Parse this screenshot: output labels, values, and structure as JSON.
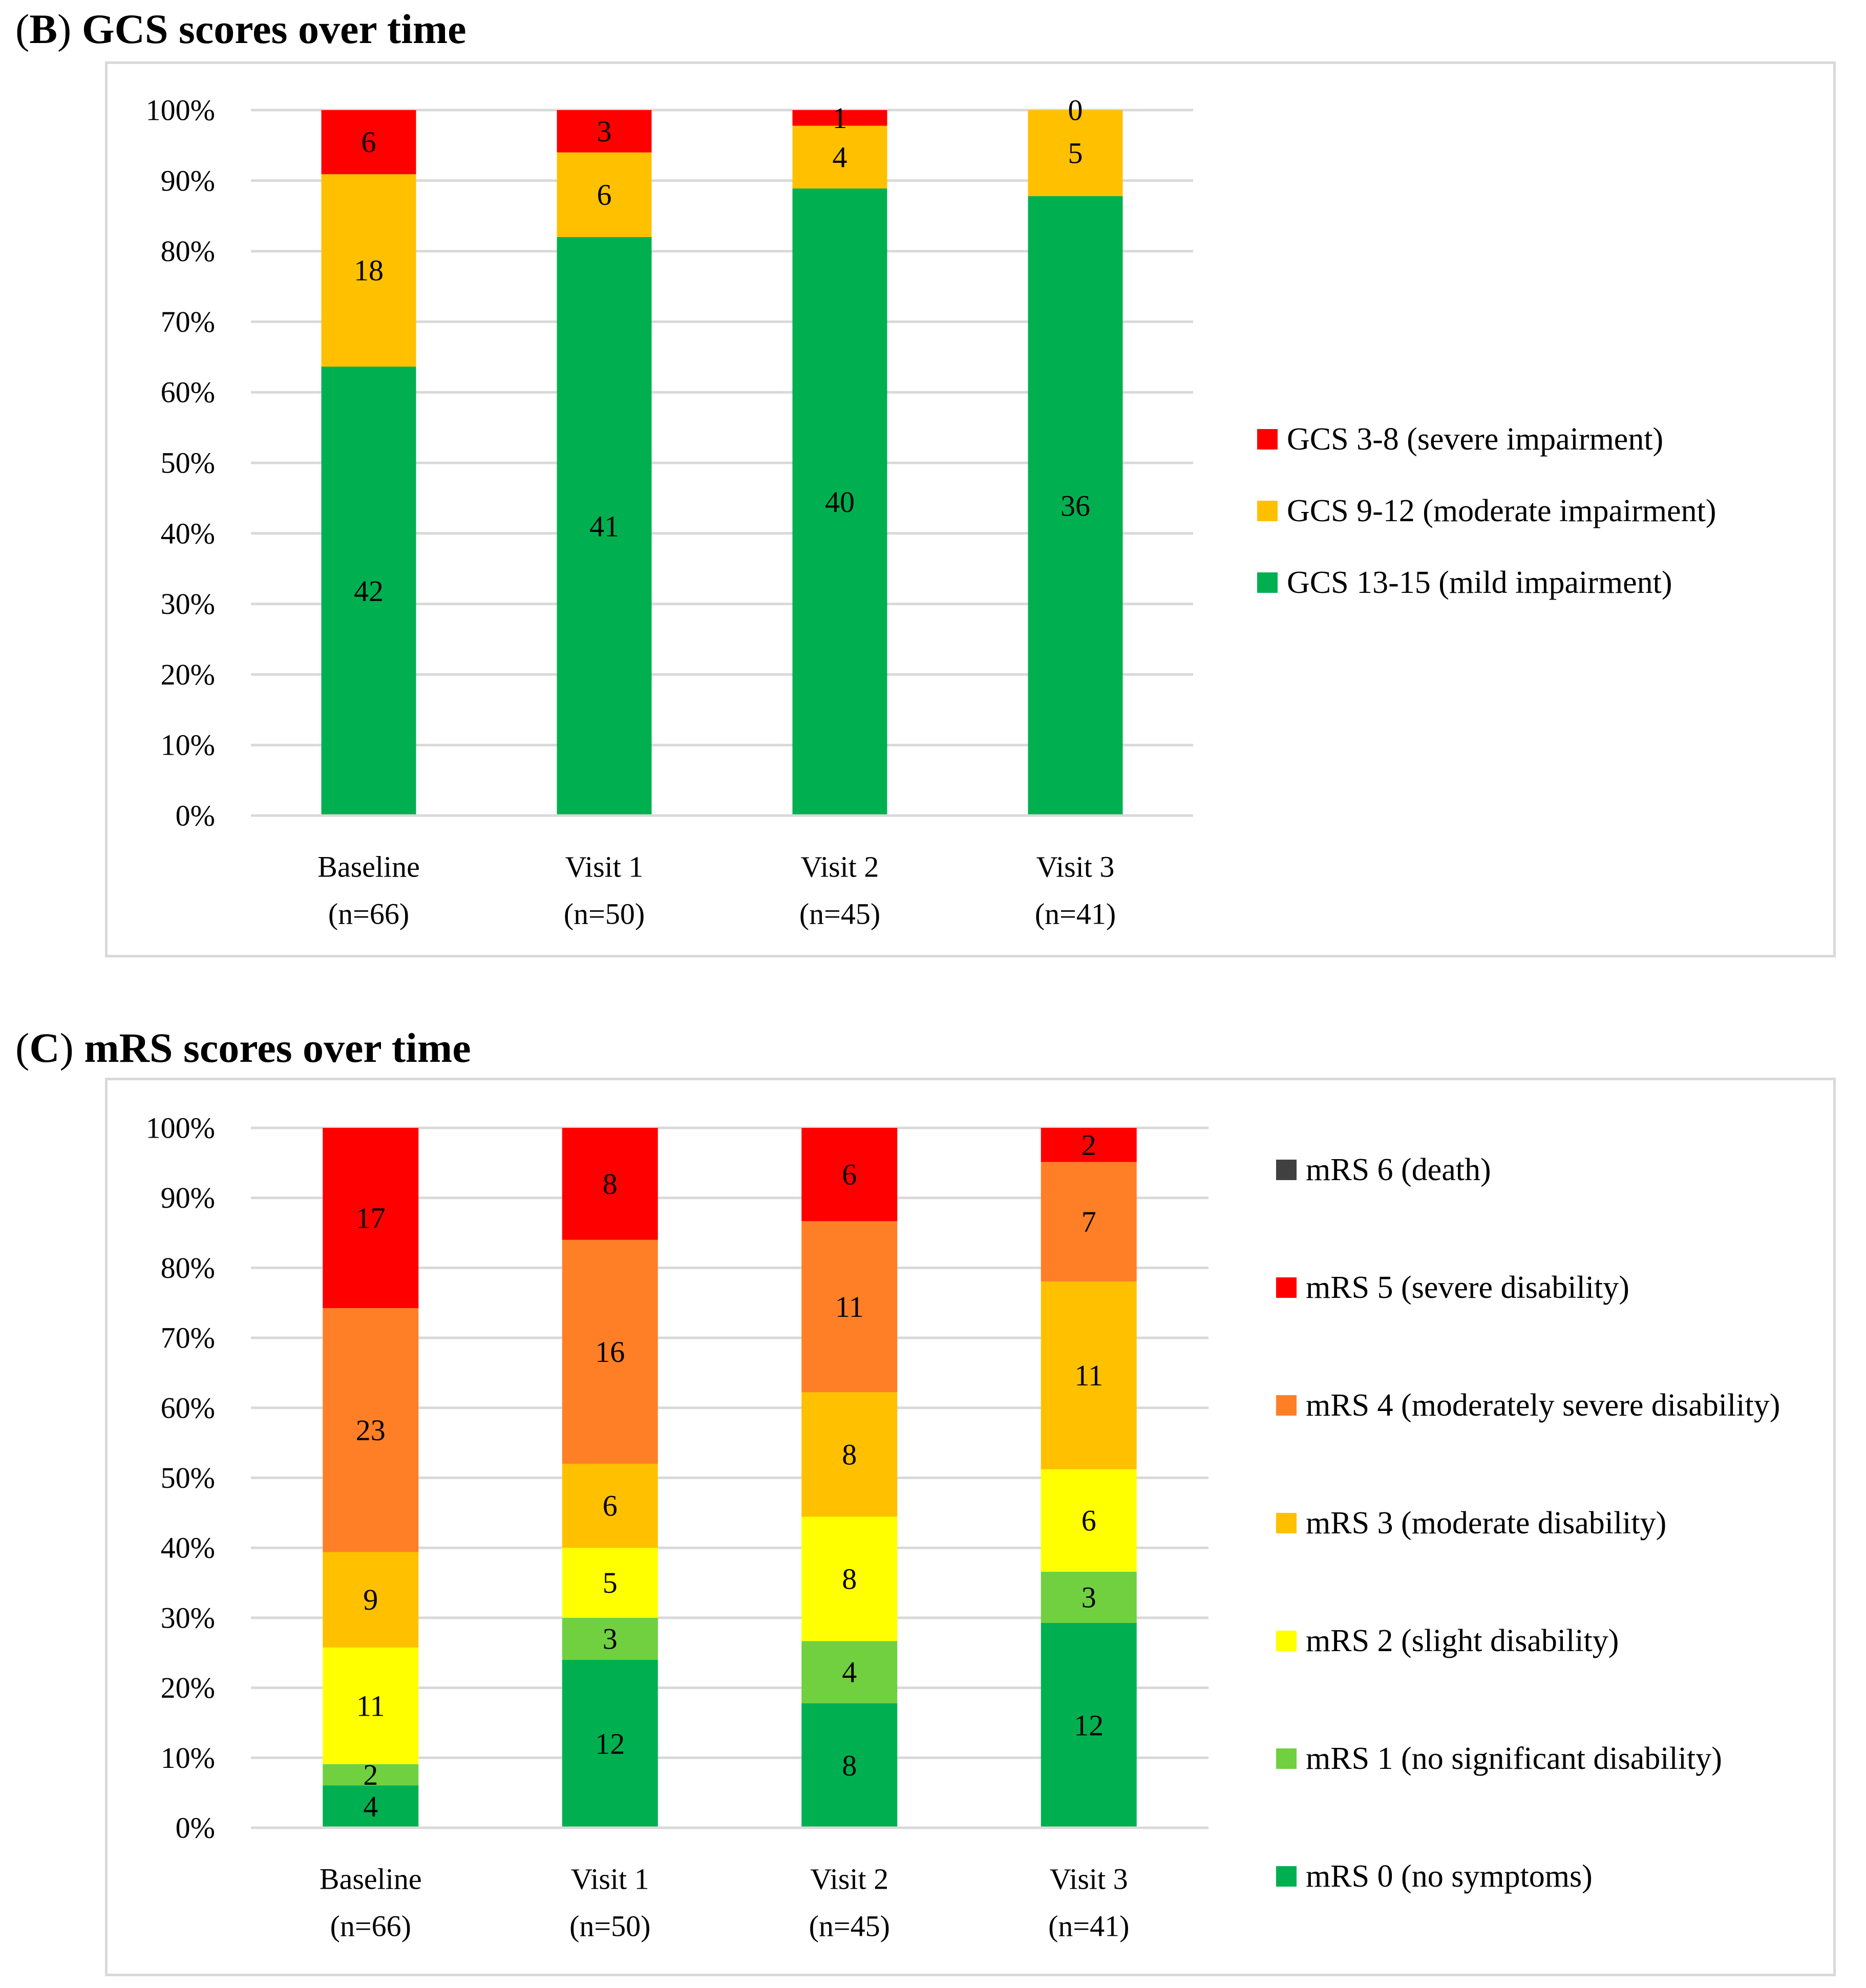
{
  "chart_data": [
    {
      "panel_label": "B",
      "title": "GCS scores over time",
      "type": "bar",
      "stacked": true,
      "normalized": true,
      "categories": [
        {
          "label": "Baseline",
          "n": "(n=66)"
        },
        {
          "label": "Visit 1",
          "n": "(n=50)"
        },
        {
          "label": "Visit 2",
          "n": "(n=45)"
        },
        {
          "label": "Visit 3",
          "n": "(n=41)"
        }
      ],
      "y_ticks": [
        "0%",
        "10%",
        "20%",
        "30%",
        "40%",
        "50%",
        "60%",
        "70%",
        "80%",
        "90%",
        "100%"
      ],
      "ylim": [
        0,
        100
      ],
      "grid": true,
      "series": [
        {
          "name": "GCS 13-15 (mild impairment)",
          "color": "#00b050",
          "values": [
            42,
            41,
            40,
            36
          ]
        },
        {
          "name": "GCS 9-12 (moderate impairment)",
          "color": "#ffc000",
          "values": [
            18,
            6,
            4,
            5
          ]
        },
        {
          "name": "GCS 3-8 (severe impairment)",
          "color": "#ff0000",
          "values": [
            6,
            3,
            1,
            0
          ]
        }
      ],
      "legend_order": [
        2,
        1,
        0
      ],
      "legend_position": "right"
    },
    {
      "panel_label": "C",
      "title": "mRS scores over time",
      "type": "bar",
      "stacked": true,
      "normalized": true,
      "categories": [
        {
          "label": "Baseline",
          "n": "(n=66)"
        },
        {
          "label": "Visit 1",
          "n": "(n=50)"
        },
        {
          "label": "Visit 2",
          "n": "(n=45)"
        },
        {
          "label": "Visit 3",
          "n": "(n=41)"
        }
      ],
      "y_ticks": [
        "0%",
        "10%",
        "20%",
        "30%",
        "40%",
        "50%",
        "60%",
        "70%",
        "80%",
        "90%",
        "100%"
      ],
      "ylim": [
        0,
        100
      ],
      "grid": true,
      "series": [
        {
          "name": "mRS 0 (no symptoms)",
          "color": "#00b050",
          "values": [
            4,
            12,
            8,
            12
          ]
        },
        {
          "name": "mRS 1 (no significant disability)",
          "color": "#70d040",
          "values": [
            2,
            3,
            4,
            3
          ]
        },
        {
          "name": "mRS 2 (slight disability)",
          "color": "#ffff00",
          "values": [
            11,
            5,
            8,
            6
          ]
        },
        {
          "name": "mRS 3 (moderate disability)",
          "color": "#ffc000",
          "values": [
            9,
            6,
            8,
            11
          ]
        },
        {
          "name": "mRS 4 (moderately severe disability)",
          "color": "#ff7f27",
          "values": [
            23,
            16,
            11,
            7
          ]
        },
        {
          "name": "mRS 5 (severe disability)",
          "color": "#ff0000",
          "values": [
            17,
            8,
            6,
            2
          ]
        },
        {
          "name": "mRS 6 (death)",
          "color": "#404040",
          "values": [
            0,
            0,
            0,
            0
          ]
        }
      ],
      "legend_order": [
        6,
        5,
        4,
        3,
        2,
        1,
        0
      ],
      "legend_position": "right"
    }
  ]
}
